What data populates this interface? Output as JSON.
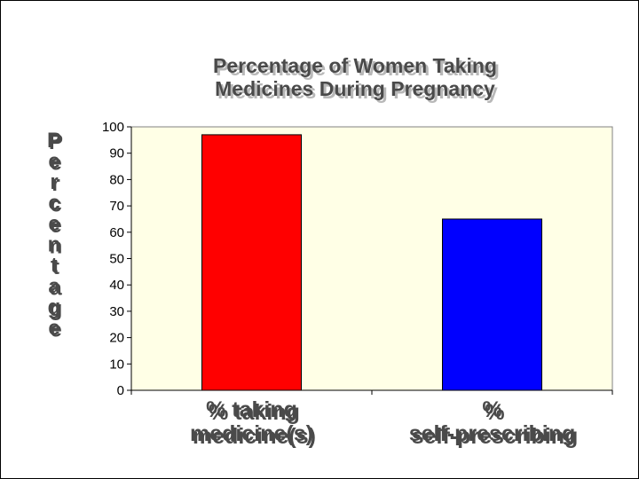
{
  "chart_data": {
    "type": "bar",
    "title": [
      "Percentage of Women Taking",
      "Medicines During Pregnancy"
    ],
    "ylabel": "Percentage",
    "xlabel": "",
    "categories": [
      [
        "% taking",
        "medicine(s)"
      ],
      [
        "%",
        "self-prescribing"
      ]
    ],
    "values": [
      97,
      65
    ],
    "bar_colors": [
      "#ff0000",
      "#0000ff"
    ],
    "ylim": [
      0,
      100
    ],
    "yticks": [
      0,
      10,
      20,
      30,
      40,
      50,
      60,
      70,
      80,
      90,
      100
    ],
    "plot_background": "#ffffe6",
    "grid": false,
    "legend": "none"
  }
}
